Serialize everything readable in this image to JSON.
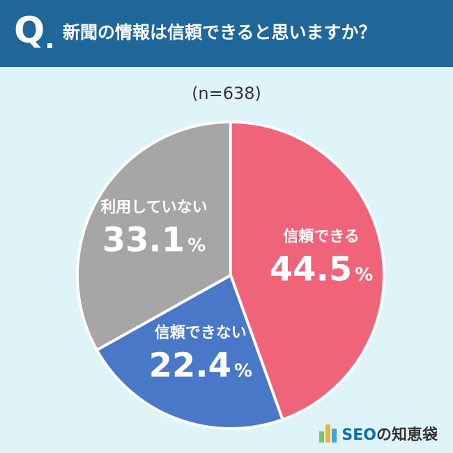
{
  "header": {
    "q_mark": "Q",
    "question": "新聞の情報は信頼できると思いますか？"
  },
  "sample_size": "(n=638)",
  "brand": {
    "name_en": "SEO",
    "name_jp": "の知恵袋"
  },
  "colors": {
    "header_bg": "#1f6699",
    "background": "#dff4f9",
    "trust": "#ef6479",
    "distrust": "#4a78c9",
    "unused": "#a6a6a6"
  },
  "chart_data": {
    "type": "pie",
    "slices": [
      {
        "label": "信頼できる",
        "value": 44.5,
        "display": "44.5",
        "unit": "%",
        "color": "#ef6479"
      },
      {
        "label": "信頼できない",
        "value": 22.4,
        "display": "22.4",
        "unit": "%",
        "color": "#4a78c9"
      },
      {
        "label": "利用していない",
        "value": 33.1,
        "display": "33.1",
        "unit": "%",
        "color": "#a6a6a6"
      }
    ],
    "start": "12 o'clock",
    "direction": "clockwise",
    "labels": "inside slices"
  }
}
